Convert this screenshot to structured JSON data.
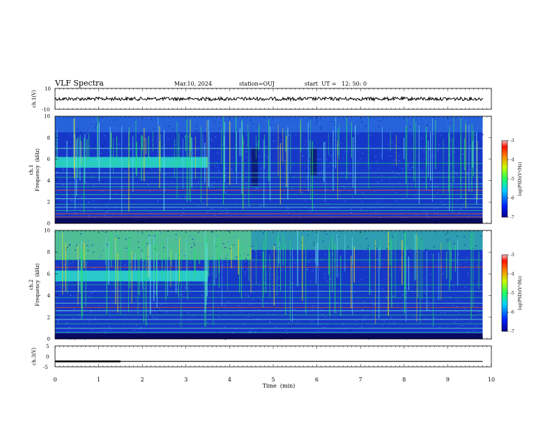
{
  "header": {
    "title": "VLF Spectra",
    "date": "Mar.10, 2024",
    "station": "station=OUJ",
    "start": "start  UT =   12: 50: 0"
  },
  "colors": {
    "spectrogram_base": "#1a3fd0",
    "line_green": "#22e060",
    "line_cyan": "#21d4c8",
    "line_red": "#e03020",
    "trace": "#000000"
  },
  "chart_data": [
    {
      "type": "line",
      "panel": "ch1-waveform",
      "ylabel": "ch.1(V)",
      "ylim": [
        -10,
        10
      ],
      "yticks": [
        "10",
        "-10"
      ],
      "x": [
        0,
        10
      ],
      "values_note_free": true,
      "level": 0
    },
    {
      "type": "heatmap",
      "panel": "ch1-spectrogram",
      "ylabel": "ch.1\nFrequency (kHz)",
      "ylabel_lines": [
        "ch.1",
        "Frequency  (kHz)"
      ],
      "ylim": [
        0,
        10
      ],
      "yticks": [
        "0",
        "2",
        "4",
        "6",
        "8",
        "10"
      ],
      "colorbar": {
        "label": "log(PSD)(V²/Hz)",
        "range": [
          -7,
          -3
        ],
        "ticks": [
          "-3",
          "-4",
          "-5",
          "-6",
          "-7"
        ]
      },
      "bands": [
        {
          "x0": 0,
          "x1": 3.5,
          "f0": 5.2,
          "f1": 6.2,
          "level": "cyan"
        }
      ],
      "hlines_khz": [
        0.6,
        0.9,
        1.2,
        1.5,
        1.8,
        2.3,
        2.7,
        3.1,
        3.4,
        3.7,
        4.3,
        4.7,
        5.6,
        7.0
      ],
      "strong_red_khz": [
        0.6,
        0.9,
        3.1
      ],
      "dark_regions": [
        {
          "x0": 4.5,
          "x1": 4.65,
          "f0": 3.5,
          "f1": 7.0
        },
        {
          "x0": 5.85,
          "x1": 6.0,
          "f0": 4.5,
          "f1": 7.0
        }
      ]
    },
    {
      "type": "heatmap",
      "panel": "ch2-spectrogram",
      "ylabel_lines": [
        "ch.2",
        "Frequency  (kHz)"
      ],
      "ylim": [
        0,
        10
      ],
      "yticks": [
        "0",
        "2",
        "4",
        "6",
        "8",
        "10"
      ],
      "colorbar": {
        "label": "log(PSD)(V²/Hz)",
        "range": [
          -7,
          -3
        ],
        "ticks": [
          "-3",
          "-4",
          "-5",
          "-6",
          "-7"
        ]
      },
      "bands": [
        {
          "x0": 0,
          "x1": 3.5,
          "f0": 5.3,
          "f1": 6.3,
          "level": "cyan"
        }
      ],
      "hlines_khz": [
        0.6,
        1.0,
        1.4,
        1.8,
        2.2,
        2.6,
        2.9,
        3.3,
        3.8,
        4.4,
        5.0,
        6.6,
        7.3
      ],
      "strong_red_khz": [
        6.6,
        2.9
      ],
      "upper_green_khz": [
        7.3,
        10
      ]
    },
    {
      "type": "line",
      "panel": "ch3-waveform",
      "ylabel": "ch.3(V)",
      "ylim": [
        -5,
        5
      ],
      "yticks": [
        "5",
        "0",
        "-5"
      ],
      "segments": [
        {
          "x0": 0,
          "x1": 1.5,
          "y": -2.4,
          "weight": "thick"
        },
        {
          "x0": 1.5,
          "x1": 9.8,
          "y": -2.4,
          "weight": "thin"
        }
      ]
    }
  ],
  "xaxis": {
    "label": "Time  (min)",
    "range": [
      0,
      10
    ],
    "ticks": [
      "0",
      "1",
      "2",
      "3",
      "4",
      "5",
      "6",
      "7",
      "8",
      "9",
      "10"
    ]
  }
}
